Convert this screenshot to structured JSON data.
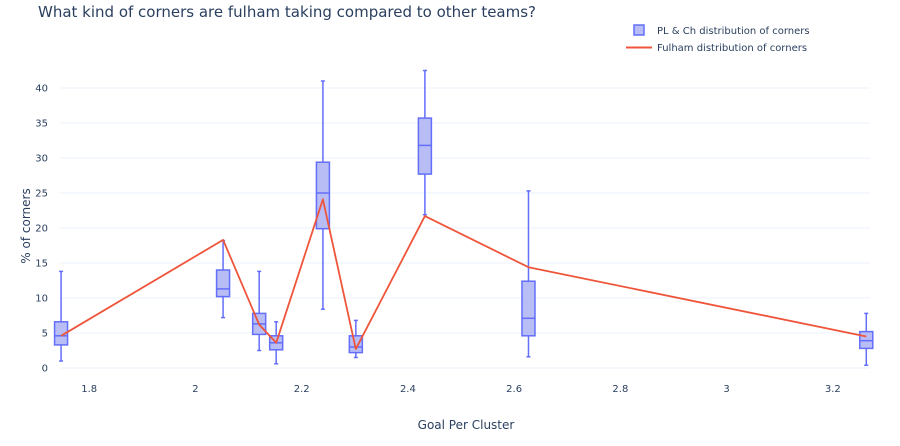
{
  "chart_data": {
    "type": "box",
    "title": "What kind of corners are fulham taking compared to other teams?",
    "xlabel": "Goal Per Cluster",
    "ylabel": "% of corners",
    "xlim": [
      1.745,
      3.27
    ],
    "ylim": [
      -1,
      44
    ],
    "x_ticks": [
      1.8,
      2,
      2.2,
      2.4,
      2.6,
      2.8,
      3,
      3.2
    ],
    "x_tick_labels": [
      "1.8",
      "2",
      "2.2",
      "2.4",
      "2.6",
      "2.8",
      "3",
      "3.2"
    ],
    "y_ticks": [
      0,
      5,
      10,
      15,
      20,
      25,
      30,
      35,
      40
    ],
    "y_tick_labels": [
      "0",
      "5",
      "10",
      "15",
      "20",
      "25",
      "30",
      "35",
      "40"
    ],
    "grid": "horizontal",
    "legend_position": "top-right",
    "colors": {
      "box_fill": "#b8bdf5",
      "box_line": "#636efa",
      "line": "#ef553b",
      "grid": "#ebf0f8",
      "text": "#2a3f5f"
    },
    "series": [
      {
        "name": "PL & Ch distribution of corners",
        "type": "box",
        "boxes": [
          {
            "x": 1.747,
            "min": 1.0,
            "q1": 3.3,
            "median": 4.6,
            "q3": 6.6,
            "max": 13.8
          },
          {
            "x": 2.052,
            "min": 7.2,
            "q1": 10.2,
            "median": 11.3,
            "q3": 14.0,
            "max": 18.2
          },
          {
            "x": 2.12,
            "min": 2.5,
            "q1": 4.8,
            "median": 6.3,
            "q3": 7.8,
            "max": 13.8
          },
          {
            "x": 2.152,
            "min": 0.6,
            "q1": 2.6,
            "median": 3.6,
            "q3": 4.6,
            "max": 6.6
          },
          {
            "x": 2.24,
            "min": 8.4,
            "q1": 19.9,
            "median": 25.0,
            "q3": 29.4,
            "max": 41.0
          },
          {
            "x": 2.302,
            "min": 1.5,
            "q1": 2.2,
            "median": 3.0,
            "q3": 4.6,
            "max": 6.8
          },
          {
            "x": 2.432,
            "min": 21.9,
            "q1": 27.7,
            "median": 31.8,
            "q3": 35.7,
            "max": 42.5
          },
          {
            "x": 2.627,
            "min": 1.6,
            "q1": 4.6,
            "median": 7.1,
            "q3": 12.4,
            "max": 25.3
          },
          {
            "x": 3.263,
            "min": 0.4,
            "q1": 2.8,
            "median": 3.9,
            "q3": 5.2,
            "max": 7.8
          }
        ]
      },
      {
        "name": "Fulham distribution of corners",
        "type": "line",
        "x": [
          1.747,
          2.052,
          2.12,
          2.152,
          2.24,
          2.302,
          2.432,
          2.627,
          3.263
        ],
        "y": [
          4.6,
          18.3,
          6.2,
          3.6,
          24.1,
          2.7,
          21.7,
          14.4,
          4.5
        ]
      }
    ]
  }
}
